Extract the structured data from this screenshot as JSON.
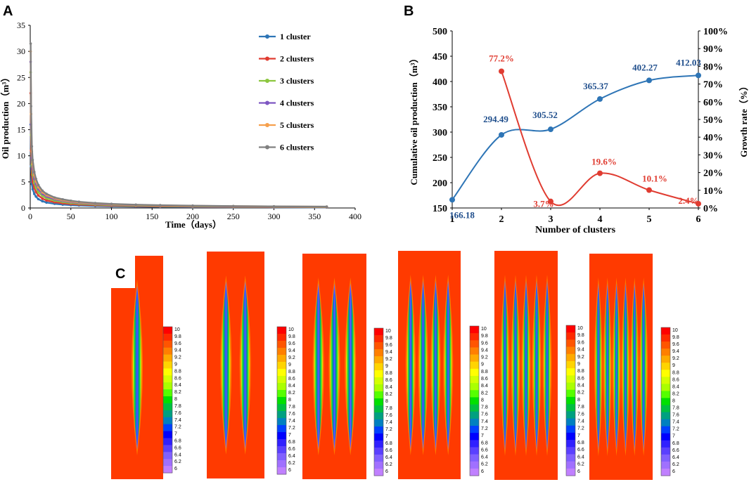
{
  "panels": {
    "A": {
      "letter": "A"
    },
    "B": {
      "letter": "B"
    },
    "C": {
      "letter": "C"
    }
  },
  "chart_data": [
    {
      "id": "A",
      "type": "line",
      "title": "",
      "xlabel": "Time（days）",
      "ylabel": "Oil production（m³）",
      "xlim": [
        0,
        400
      ],
      "ylim": [
        0,
        35
      ],
      "xticks": [
        0,
        50,
        100,
        150,
        200,
        250,
        300,
        350,
        400
      ],
      "yticks": [
        0,
        5,
        10,
        15,
        20,
        25,
        30,
        35
      ],
      "legend_position": "top-right",
      "x": [
        0.5,
        1,
        2,
        3,
        5,
        7,
        10,
        15,
        20,
        30,
        40,
        50,
        60,
        80,
        100,
        130,
        160,
        200,
        250,
        300,
        365
      ],
      "series": [
        {
          "name": "1 cluster",
          "color": "#2e75b6",
          "values": [
            16,
            8,
            4.6,
            3.6,
            2.7,
            2.2,
            1.7,
            1.3,
            1.05,
            0.8,
            0.65,
            0.55,
            0.48,
            0.38,
            0.32,
            0.26,
            0.22,
            0.18,
            0.15,
            0.13,
            0.1
          ]
        },
        {
          "name": "2 clusters",
          "color": "#e03c31",
          "values": [
            22,
            11,
            6.4,
            5,
            3.8,
            3.1,
            2.4,
            1.8,
            1.45,
            1.1,
            0.9,
            0.75,
            0.66,
            0.52,
            0.44,
            0.36,
            0.3,
            0.25,
            0.21,
            0.18,
            0.15
          ]
        },
        {
          "name": "3 clusters",
          "color": "#8cc63f",
          "values": [
            26,
            14,
            8.2,
            6.4,
            4.8,
            3.9,
            3,
            2.3,
            1.85,
            1.4,
            1.15,
            0.95,
            0.82,
            0.65,
            0.55,
            0.45,
            0.38,
            0.31,
            0.26,
            0.22,
            0.18
          ]
        },
        {
          "name": "4 clusters",
          "color": "#7e57c2",
          "values": [
            28,
            16,
            9.6,
            7.5,
            5.6,
            4.6,
            3.6,
            2.7,
            2.2,
            1.65,
            1.35,
            1.12,
            0.97,
            0.77,
            0.64,
            0.52,
            0.44,
            0.36,
            0.3,
            0.26,
            0.21
          ]
        },
        {
          "name": "5 clusters",
          "color": "#f6a04d",
          "values": [
            30,
            18,
            10.8,
            8.4,
            6.3,
            5.1,
            4,
            3,
            2.45,
            1.85,
            1.5,
            1.25,
            1.08,
            0.86,
            0.72,
            0.58,
            0.49,
            0.4,
            0.34,
            0.29,
            0.24
          ]
        },
        {
          "name": "6 clusters",
          "color": "#808080",
          "values": [
            31.5,
            19.5,
            11.8,
            9.2,
            6.9,
            5.6,
            4.4,
            3.3,
            2.7,
            2,
            1.65,
            1.38,
            1.18,
            0.94,
            0.78,
            0.63,
            0.53,
            0.44,
            0.37,
            0.31,
            0.26
          ]
        }
      ]
    },
    {
      "id": "B",
      "type": "line",
      "title": "",
      "xlabel": "Number of clusters",
      "ylabel": "Cumulative oil production（m³）",
      "ylabel_right": "Growth rate（%）",
      "categories": [
        1,
        2,
        3,
        4,
        5,
        6
      ],
      "xlim": [
        1,
        6
      ],
      "ylim": [
        150,
        500
      ],
      "ylim_right": [
        0,
        100
      ],
      "yticks": [
        150,
        200,
        250,
        300,
        350,
        400,
        450,
        500
      ],
      "yticks_right": [
        "0%",
        "10%",
        "20%",
        "30%",
        "40%",
        "50%",
        "60%",
        "70%",
        "80%",
        "90%",
        "100%"
      ],
      "series": [
        {
          "name": "Cumulative oil production",
          "axis": "left",
          "color": "#2e75b6",
          "label_color": "#1f4e8c",
          "x": [
            1,
            2,
            3,
            4,
            5,
            6
          ],
          "values": [
            166.18,
            294.49,
            305.52,
            365.37,
            402.27,
            412.03
          ],
          "labels": [
            "166.18",
            "294.49",
            "305.52",
            "365.37",
            "402.27",
            "412.03"
          ]
        },
        {
          "name": "Growth rate",
          "axis": "right",
          "color": "#e03c31",
          "label_color": "#e03c31",
          "x": [
            2,
            3,
            4,
            5,
            6
          ],
          "values": [
            77.2,
            3.7,
            19.6,
            10.1,
            2.4
          ],
          "labels": [
            "77.2%",
            "3.7%",
            "19.6%",
            "10.1%",
            "2.4%"
          ]
        }
      ]
    },
    {
      "id": "C",
      "type": "heatmap",
      "title": "",
      "maps": [
        1,
        2,
        3,
        4,
        5,
        6
      ],
      "colorbar_ticks": [
        "10",
        "9.8",
        "9.6",
        "9.4",
        "9.2",
        "9",
        "8.8",
        "8.6",
        "8.4",
        "8.2",
        "8",
        "7.8",
        "7.6",
        "7.4",
        "7.2",
        "7",
        "6.8",
        "6.6",
        "6.4",
        "6.2",
        "6"
      ],
      "colorbar_colors": [
        "#ff0000",
        "#ff2a00",
        "#ff5500",
        "#ff7f00",
        "#ffaa00",
        "#ffd400",
        "#ffff00",
        "#d4ff00",
        "#aaff00",
        "#55ff00",
        "#00e000",
        "#00c040",
        "#00a080",
        "#0080c0",
        "#0040ff",
        "#0000ff",
        "#3020ff",
        "#5a40ff",
        "#8060ff",
        "#a070ff",
        "#c080ff"
      ]
    }
  ]
}
